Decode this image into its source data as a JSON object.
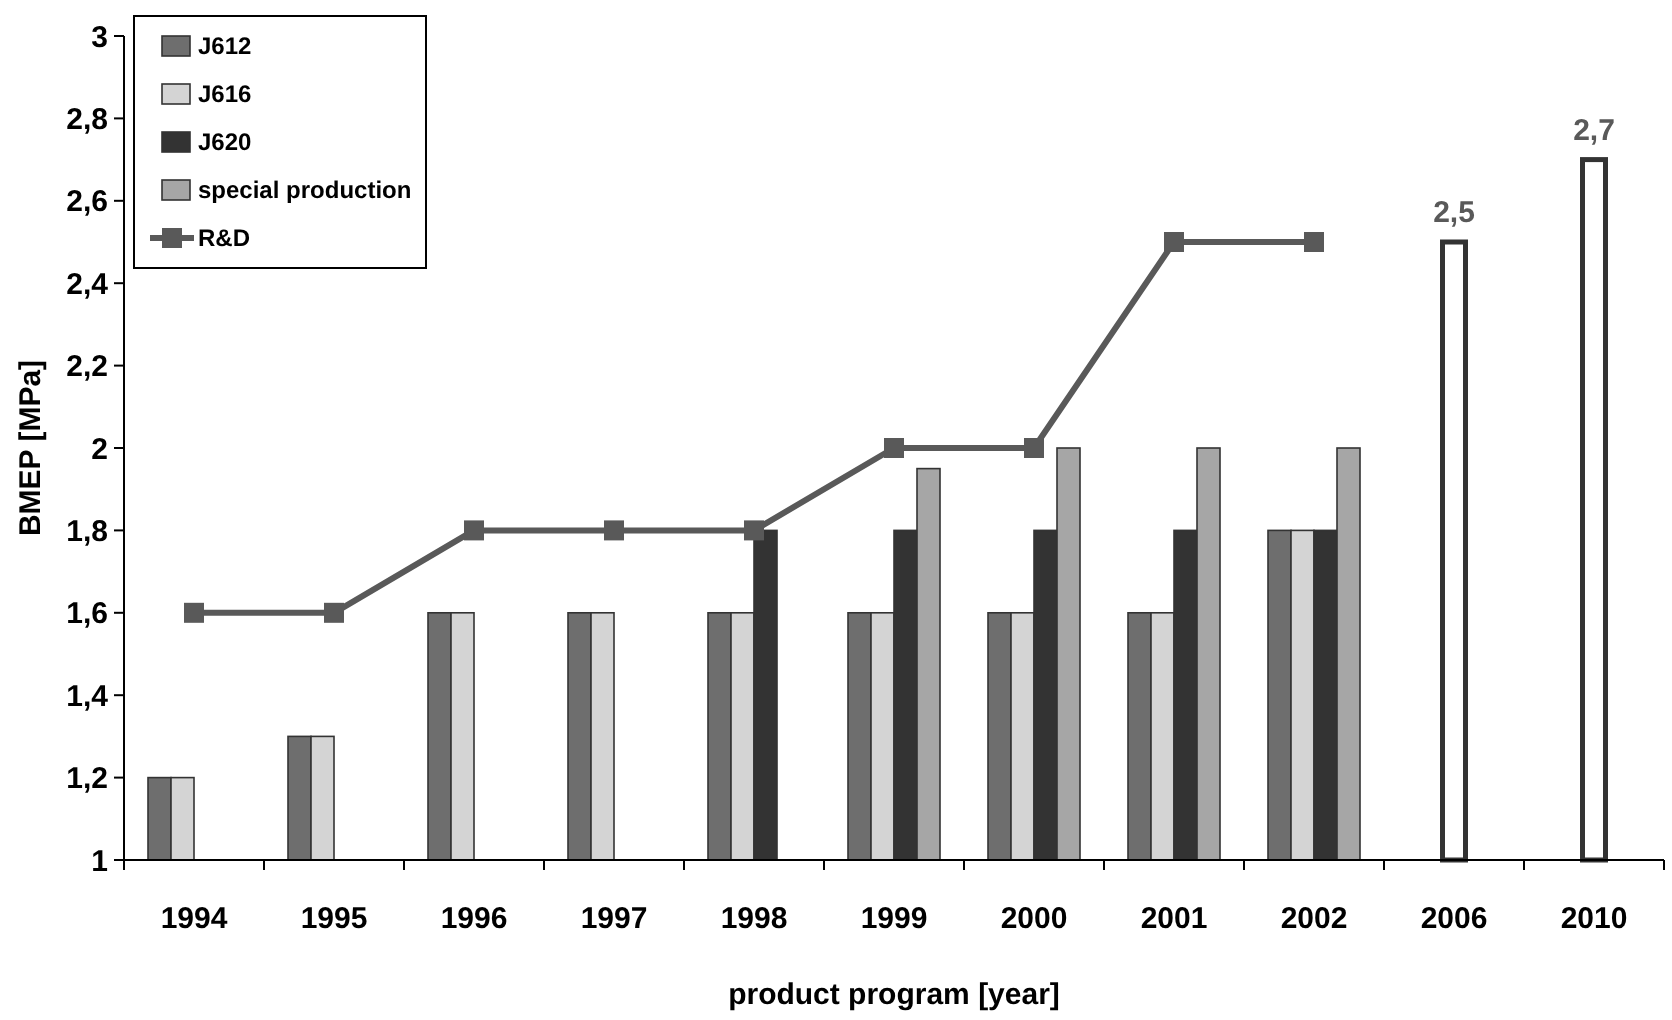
{
  "chart_data": {
    "type": "bar",
    "xlabel": "product program [year]",
    "ylabel": "BMEP [MPa]",
    "categories": [
      "1994",
      "1995",
      "1996",
      "1997",
      "1998",
      "1999",
      "2000",
      "2001",
      "2002",
      "2006",
      "2010"
    ],
    "series": [
      {
        "name": "J612",
        "color": "#6e6e6e",
        "values": [
          1.2,
          1.3,
          1.6,
          1.6,
          1.6,
          1.6,
          1.6,
          1.6,
          1.8,
          null,
          null
        ]
      },
      {
        "name": "J616",
        "color": "#d4d4d4",
        "values": [
          1.2,
          1.3,
          1.6,
          1.6,
          1.6,
          1.6,
          1.6,
          1.6,
          1.8,
          null,
          null
        ]
      },
      {
        "name": "J620",
        "color": "#333333",
        "values": [
          null,
          null,
          null,
          null,
          1.8,
          1.8,
          1.8,
          1.8,
          1.8,
          null,
          null
        ]
      },
      {
        "name": "special production",
        "color": "#a6a6a6",
        "values": [
          null,
          null,
          null,
          null,
          null,
          1.95,
          2.0,
          2.0,
          2.0,
          null,
          null
        ]
      },
      {
        "color": "#ffffff",
        "values": [
          null,
          null,
          null,
          null,
          null,
          null,
          null,
          null,
          null,
          2.5,
          2.7
        ],
        "value_labels": [
          null,
          null,
          null,
          null,
          null,
          null,
          null,
          null,
          null,
          "2,5",
          "2,7"
        ]
      },
      {
        "name": "R&D",
        "type": "line",
        "color": "#595959",
        "marker": "square",
        "values": [
          1.6,
          1.6,
          1.8,
          1.8,
          1.8,
          2.0,
          2.0,
          2.5,
          2.5,
          null,
          null
        ]
      }
    ],
    "ylim": [
      1,
      3
    ],
    "yticks": [
      1,
      {
        "value": 1.2,
        "label": "1,2"
      },
      {
        "value": 1.4,
        "label": "1,4"
      },
      {
        "value": 1.6,
        "label": "1,6"
      },
      {
        "value": 1.8,
        "label": "1,8"
      },
      2,
      {
        "value": 2.2,
        "label": "2,2"
      },
      {
        "value": 2.4,
        "label": "2,4"
      },
      {
        "value": 2.6,
        "label": "2,6"
      },
      {
        "value": 2.8,
        "label": "2,8"
      },
      3
    ],
    "grid": false,
    "legend": "top left"
  }
}
